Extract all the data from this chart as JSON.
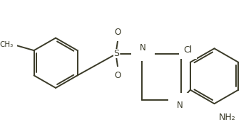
{
  "background_color": "#ffffff",
  "line_color": "#3a3a28",
  "line_width": 1.4,
  "figsize": [
    3.52,
    1.96
  ],
  "dpi": 100,
  "xlim": [
    0,
    352
  ],
  "ylim": [
    0,
    196
  ]
}
